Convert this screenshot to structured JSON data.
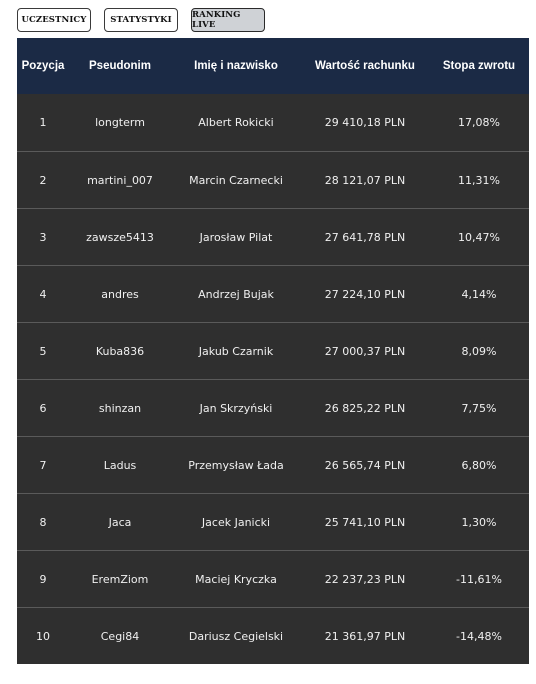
{
  "tabs": [
    {
      "label": "UCZESTNICY",
      "active": false
    },
    {
      "label": "STATYSTYKI",
      "active": false
    },
    {
      "label": "RANKING LIVE",
      "active": true
    }
  ],
  "table": {
    "headers": [
      "Pozycja",
      "Pseudonim",
      "Imię i nazwisko",
      "Wartość rachunku",
      "Stopa zwrotu"
    ],
    "rows": [
      {
        "pos": "1",
        "nick": "longterm",
        "name": "Albert Rokicki",
        "value": "29 410,18 PLN",
        "return": "17,08%"
      },
      {
        "pos": "2",
        "nick": "martini_007",
        "name": "Marcin Czarnecki",
        "value": "28 121,07 PLN",
        "return": "11,31%"
      },
      {
        "pos": "3",
        "nick": "zawsze5413",
        "name": "Jarosław Pilat",
        "value": "27 641,78 PLN",
        "return": "10,47%"
      },
      {
        "pos": "4",
        "nick": "andres",
        "name": "Andrzej Bujak",
        "value": "27 224,10 PLN",
        "return": "4,14%"
      },
      {
        "pos": "5",
        "nick": "Kuba836",
        "name": "Jakub Czarnik",
        "value": "27 000,37 PLN",
        "return": "8,09%"
      },
      {
        "pos": "6",
        "nick": "shinzan",
        "name": "Jan Skrzyński",
        "value": "26 825,22 PLN",
        "return": "7,75%"
      },
      {
        "pos": "7",
        "nick": "Ladus",
        "name": "Przemysław Łada",
        "value": "26 565,74 PLN",
        "return": "6,80%"
      },
      {
        "pos": "8",
        "nick": "Jaca",
        "name": "Jacek Janicki",
        "value": "25 741,10 PLN",
        "return": "1,30%"
      },
      {
        "pos": "9",
        "nick": "EremZiom",
        "name": "Maciej Kryczka",
        "value": "22 237,23 PLN",
        "return": "-11,61%"
      },
      {
        "pos": "10",
        "nick": "Cegi84",
        "name": "Dariusz Cegielski",
        "value": "21 361,97 PLN",
        "return": "-14,48%"
      }
    ]
  }
}
